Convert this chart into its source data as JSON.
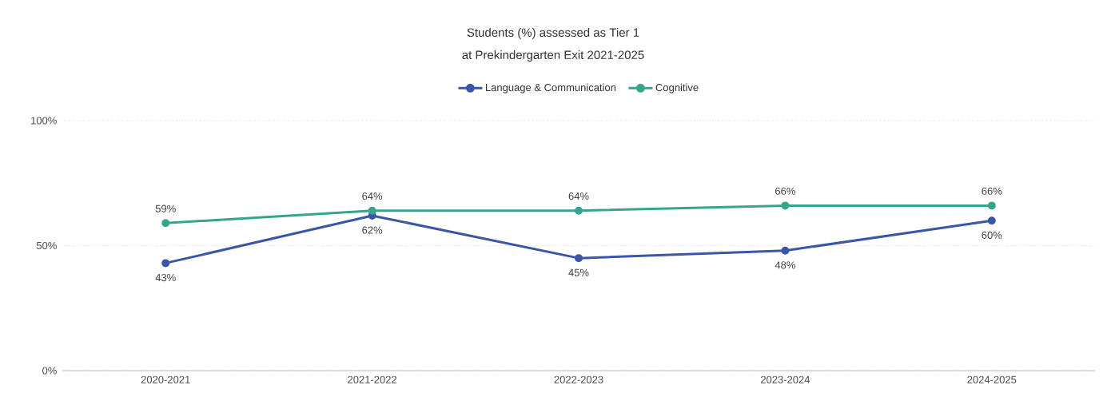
{
  "chart_data": {
    "type": "line",
    "title": "Students (%) assessed as Tier 1",
    "subtitle": "at Prekindergarten Exit 2021-2025",
    "categories": [
      "2020-2021",
      "2021-2022",
      "2022-2023",
      "2023-2024",
      "2024-2025"
    ],
    "series": [
      {
        "name": "Language & Communication",
        "color": "#3a56a8",
        "values": [
          43,
          62,
          45,
          48,
          60
        ],
        "value_labels": [
          "43%",
          "62%",
          "45%",
          "48%",
          "60%"
        ]
      },
      {
        "name": "Cognitive",
        "color": "#35a58e",
        "values": [
          59,
          64,
          64,
          66,
          66
        ],
        "value_labels": [
          "59%",
          "64%",
          "64%",
          "66%",
          "66%"
        ]
      }
    ],
    "ylim": [
      0,
      100
    ],
    "yticks": [
      {
        "value": 0,
        "label": "0%"
      },
      {
        "value": 50,
        "label": "50%"
      },
      {
        "value": 100,
        "label": "100%"
      }
    ],
    "grid": "y",
    "legend": "top",
    "marker": "circle",
    "line_style": "solid"
  }
}
